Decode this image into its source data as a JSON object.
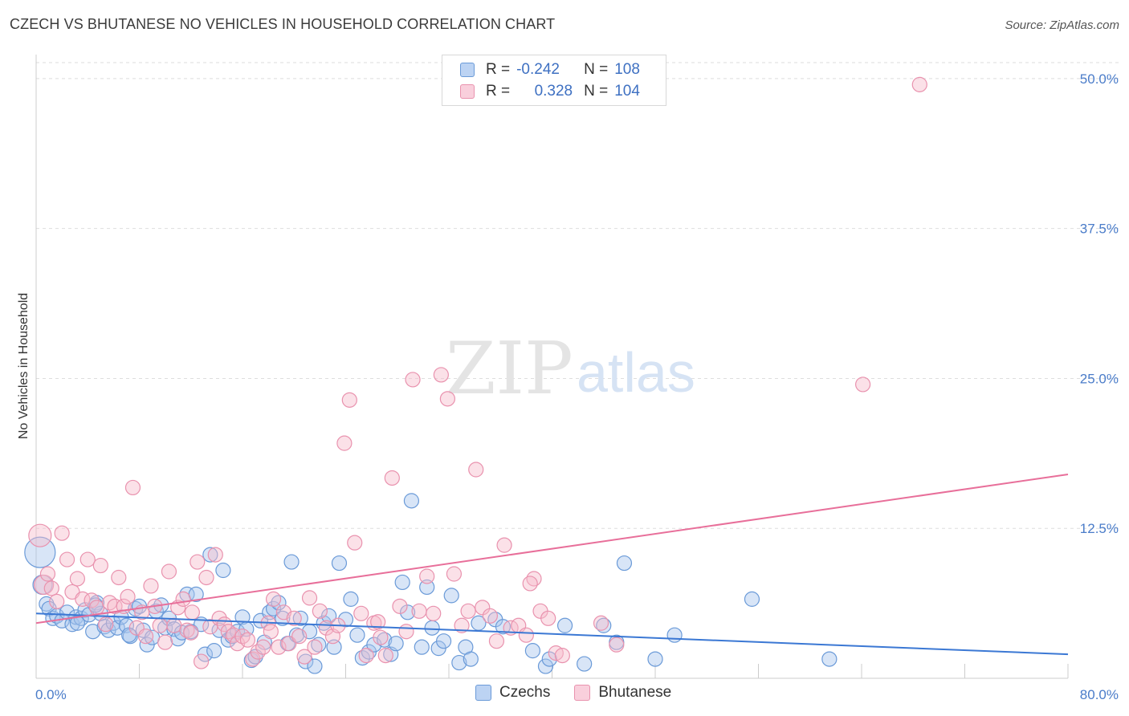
{
  "title": "CZECH VS BHUTANESE NO VEHICLES IN HOUSEHOLD CORRELATION CHART",
  "source": "Source: ZipAtlas.com",
  "watermark": {
    "zip": "ZIP",
    "atlas": "atlas"
  },
  "legend": {
    "rows": [
      {
        "r_label": "R =",
        "r_value": "-0.242",
        "n_label": "N =",
        "n_value": "108"
      },
      {
        "r_label": "R =",
        "r_value": "0.328",
        "n_label": "N =",
        "n_value": "104"
      }
    ]
  },
  "bottom_legend": [
    "Czechs",
    "Bhutanese"
  ],
  "colors": {
    "czech_fill": "#a9c6ee",
    "czech_stroke": "#6a9ad8",
    "czech_line": "#3b78d4",
    "bhutanese_fill": "#f6bccd",
    "bhutanese_stroke": "#e992ae",
    "bhutanese_line": "#e86f9a",
    "grid": "#dddddd",
    "tick_text": "#4a7cc9"
  },
  "chart_data": {
    "type": "scatter",
    "title": "CZECH VS BHUTANESE NO VEHICLES IN HOUSEHOLD CORRELATION CHART",
    "xlabel": "",
    "ylabel": "No Vehicles in Household",
    "xlim": [
      0,
      80
    ],
    "ylim": [
      0,
      52
    ],
    "x_tick_labels": [
      "0.0%",
      "80.0%"
    ],
    "y_ticks": [
      12.5,
      25.0,
      37.5,
      50.0
    ],
    "y_tick_labels": [
      "12.5%",
      "25.0%",
      "37.5%",
      "50.0%"
    ],
    "grid": true,
    "legend_position": "top-center",
    "series": [
      {
        "name": "Czechs",
        "r": -0.242,
        "n": 108,
        "trend": {
          "x": [
            0,
            80
          ],
          "y": [
            5.4,
            2.0
          ]
        },
        "points": [
          [
            0.3,
            10.5
          ],
          [
            0.5,
            7.8
          ],
          [
            0.8,
            6.2
          ],
          [
            1.0,
            5.8
          ],
          [
            1.3,
            5.0
          ],
          [
            1.6,
            5.2
          ],
          [
            2.0,
            4.8
          ],
          [
            2.4,
            5.5
          ],
          [
            2.8,
            4.5
          ],
          [
            3.1,
            5.1
          ],
          [
            3.5,
            5.0
          ],
          [
            3.8,
            5.7
          ],
          [
            4.1,
            5.3
          ],
          [
            4.4,
            3.9
          ],
          [
            4.7,
            6.3
          ],
          [
            5.0,
            5.4
          ],
          [
            5.3,
            4.3
          ],
          [
            5.6,
            4.0
          ],
          [
            6.0,
            4.6
          ],
          [
            6.3,
            4.2
          ],
          [
            6.6,
            5.1
          ],
          [
            7.0,
            4.4
          ],
          [
            7.3,
            3.5
          ],
          [
            7.7,
            5.8
          ],
          [
            8.0,
            6.0
          ],
          [
            8.3,
            4.0
          ],
          [
            8.6,
            2.8
          ],
          [
            9.0,
            3.4
          ],
          [
            9.3,
            5.6
          ],
          [
            9.7,
            6.1
          ],
          [
            10.0,
            4.2
          ],
          [
            10.3,
            5.0
          ],
          [
            10.7,
            4.1
          ],
          [
            11.0,
            3.3
          ],
          [
            11.3,
            3.8
          ],
          [
            11.7,
            7.0
          ],
          [
            12.0,
            3.9
          ],
          [
            12.4,
            7.0
          ],
          [
            12.8,
            4.5
          ],
          [
            13.1,
            2.0
          ],
          [
            13.5,
            10.3
          ],
          [
            13.8,
            2.3
          ],
          [
            14.2,
            4.0
          ],
          [
            14.5,
            9.0
          ],
          [
            14.9,
            3.2
          ],
          [
            15.2,
            3.5
          ],
          [
            15.6,
            3.9
          ],
          [
            16.0,
            5.1
          ],
          [
            16.3,
            4.1
          ],
          [
            16.7,
            1.5
          ],
          [
            17.0,
            1.8
          ],
          [
            17.4,
            4.8
          ],
          [
            17.7,
            3.0
          ],
          [
            18.1,
            5.5
          ],
          [
            18.4,
            5.8
          ],
          [
            18.8,
            6.3
          ],
          [
            19.1,
            5.0
          ],
          [
            19.5,
            2.9
          ],
          [
            19.8,
            9.7
          ],
          [
            20.2,
            3.6
          ],
          [
            20.5,
            5.0
          ],
          [
            20.9,
            1.4
          ],
          [
            21.2,
            3.9
          ],
          [
            21.6,
            1.0
          ],
          [
            21.9,
            2.8
          ],
          [
            22.3,
            4.6
          ],
          [
            22.7,
            5.2
          ],
          [
            23.1,
            2.6
          ],
          [
            23.5,
            9.6
          ],
          [
            24.0,
            4.9
          ],
          [
            24.4,
            6.6
          ],
          [
            24.9,
            3.6
          ],
          [
            25.3,
            1.7
          ],
          [
            25.8,
            2.2
          ],
          [
            26.2,
            2.8
          ],
          [
            27.0,
            3.2
          ],
          [
            27.5,
            2.0
          ],
          [
            27.9,
            2.9
          ],
          [
            28.4,
            8.0
          ],
          [
            28.8,
            5.5
          ],
          [
            29.1,
            14.8
          ],
          [
            29.9,
            2.6
          ],
          [
            30.3,
            7.6
          ],
          [
            30.7,
            4.2
          ],
          [
            31.2,
            2.5
          ],
          [
            31.6,
            3.1
          ],
          [
            32.2,
            6.9
          ],
          [
            32.8,
            1.3
          ],
          [
            33.3,
            2.6
          ],
          [
            33.7,
            1.6
          ],
          [
            34.3,
            4.6
          ],
          [
            35.6,
            4.9
          ],
          [
            36.2,
            4.3
          ],
          [
            38.5,
            2.3
          ],
          [
            39.5,
            1.0
          ],
          [
            39.8,
            1.6
          ],
          [
            41.0,
            4.4
          ],
          [
            42.5,
            1.2
          ],
          [
            44.0,
            4.4
          ],
          [
            45.0,
            3.0
          ],
          [
            45.6,
            9.6
          ],
          [
            48.0,
            1.6
          ],
          [
            49.5,
            3.6
          ],
          [
            55.5,
            6.6
          ],
          [
            61.5,
            1.6
          ],
          [
            3.2,
            4.6
          ],
          [
            4.6,
            6.1
          ],
          [
            7.2,
            3.6
          ]
        ]
      },
      {
        "name": "Bhutanese",
        "r": 0.328,
        "n": 104,
        "trend": {
          "x": [
            0,
            80
          ],
          "y": [
            4.6,
            17.0
          ]
        },
        "points": [
          [
            0.3,
            11.9
          ],
          [
            0.6,
            7.8
          ],
          [
            0.9,
            8.7
          ],
          [
            1.2,
            7.5
          ],
          [
            1.6,
            6.4
          ],
          [
            2.0,
            12.1
          ],
          [
            2.4,
            9.9
          ],
          [
            2.8,
            7.2
          ],
          [
            3.2,
            8.3
          ],
          [
            3.6,
            6.6
          ],
          [
            4.0,
            9.9
          ],
          [
            4.3,
            6.5
          ],
          [
            4.7,
            5.9
          ],
          [
            5.0,
            9.4
          ],
          [
            5.4,
            4.5
          ],
          [
            5.7,
            6.3
          ],
          [
            6.1,
            6.0
          ],
          [
            6.4,
            8.4
          ],
          [
            6.8,
            6.0
          ],
          [
            7.1,
            6.8
          ],
          [
            7.5,
            15.9
          ],
          [
            7.8,
            4.2
          ],
          [
            8.2,
            5.5
          ],
          [
            8.5,
            3.5
          ],
          [
            8.9,
            7.7
          ],
          [
            9.2,
            6.0
          ],
          [
            9.6,
            4.4
          ],
          [
            10.0,
            3.0
          ],
          [
            10.3,
            8.9
          ],
          [
            10.7,
            4.4
          ],
          [
            11.0,
            5.9
          ],
          [
            11.4,
            6.6
          ],
          [
            11.7,
            4.0
          ],
          [
            12.1,
            5.5
          ],
          [
            12.5,
            9.7
          ],
          [
            12.8,
            1.4
          ],
          [
            13.2,
            8.4
          ],
          [
            13.5,
            4.3
          ],
          [
            13.9,
            10.3
          ],
          [
            14.2,
            5.0
          ],
          [
            14.6,
            4.5
          ],
          [
            14.9,
            3.9
          ],
          [
            15.3,
            3.6
          ],
          [
            15.6,
            2.9
          ],
          [
            16.0,
            3.5
          ],
          [
            16.4,
            3.2
          ],
          [
            16.8,
            1.6
          ],
          [
            17.2,
            2.2
          ],
          [
            17.6,
            2.6
          ],
          [
            18.0,
            4.6
          ],
          [
            18.4,
            6.6
          ],
          [
            18.8,
            2.6
          ],
          [
            19.2,
            5.5
          ],
          [
            19.6,
            2.9
          ],
          [
            20.0,
            5.0
          ],
          [
            20.4,
            3.5
          ],
          [
            20.8,
            1.8
          ],
          [
            21.2,
            6.7
          ],
          [
            21.6,
            2.6
          ],
          [
            22.0,
            5.6
          ],
          [
            22.5,
            4.2
          ],
          [
            23.0,
            3.5
          ],
          [
            23.4,
            4.4
          ],
          [
            23.9,
            19.6
          ],
          [
            24.3,
            23.2
          ],
          [
            24.7,
            11.3
          ],
          [
            25.2,
            5.4
          ],
          [
            25.6,
            1.9
          ],
          [
            26.2,
            4.6
          ],
          [
            26.7,
            3.4
          ],
          [
            27.1,
            1.9
          ],
          [
            27.6,
            16.7
          ],
          [
            28.2,
            6.0
          ],
          [
            28.7,
            3.9
          ],
          [
            29.2,
            24.9
          ],
          [
            29.7,
            5.6
          ],
          [
            30.3,
            8.5
          ],
          [
            30.8,
            5.4
          ],
          [
            31.4,
            25.3
          ],
          [
            31.9,
            23.3
          ],
          [
            32.4,
            8.7
          ],
          [
            33.0,
            4.4
          ],
          [
            33.5,
            5.6
          ],
          [
            34.1,
            17.4
          ],
          [
            34.6,
            5.9
          ],
          [
            35.2,
            5.2
          ],
          [
            35.7,
            3.1
          ],
          [
            36.3,
            11.1
          ],
          [
            36.8,
            4.2
          ],
          [
            37.4,
            4.4
          ],
          [
            38.0,
            3.6
          ],
          [
            38.6,
            8.3
          ],
          [
            39.1,
            5.6
          ],
          [
            39.7,
            5.0
          ],
          [
            40.3,
            2.1
          ],
          [
            40.8,
            1.9
          ],
          [
            43.8,
            4.6
          ],
          [
            45.0,
            2.8
          ],
          [
            64.1,
            24.5
          ],
          [
            68.5,
            49.5
          ],
          [
            12.0,
            3.8
          ],
          [
            18.2,
            3.9
          ],
          [
            26.5,
            4.7
          ],
          [
            38.3,
            7.9
          ]
        ]
      }
    ]
  }
}
